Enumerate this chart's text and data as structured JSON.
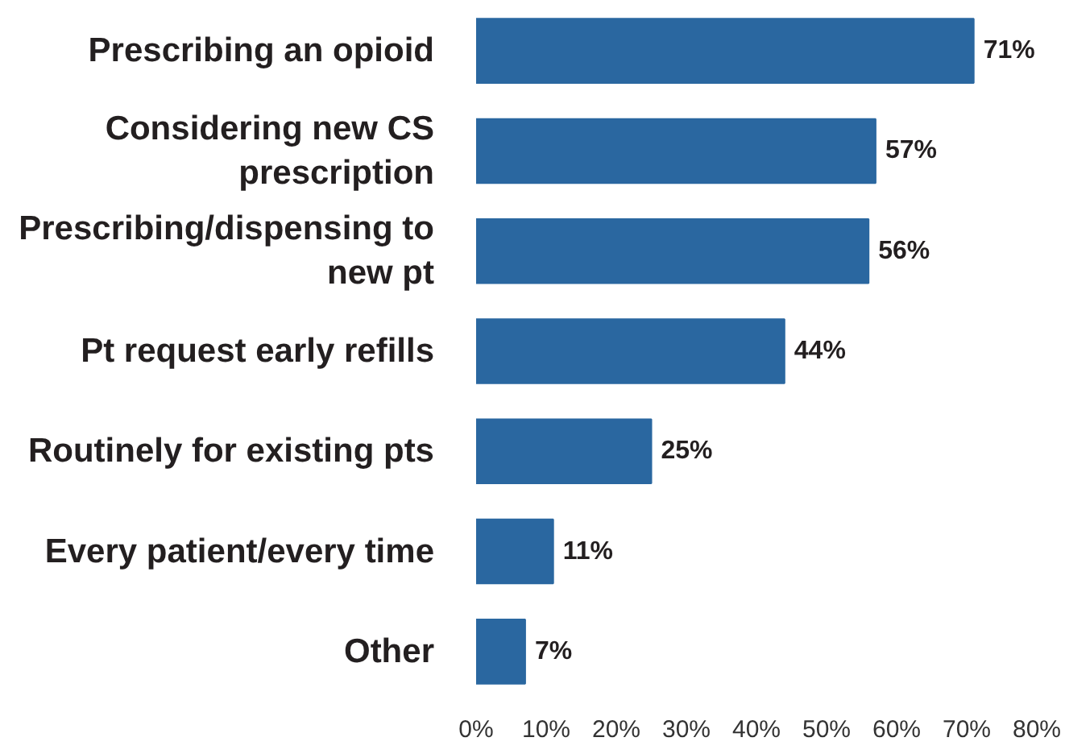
{
  "chart_data": {
    "type": "bar",
    "orientation": "horizontal",
    "categories": [
      "Prescribing an opioid",
      "Considering new CS prescription",
      "Prescribing/dispensing to new pt",
      "Pt request early refills",
      "Routinely for existing pts",
      "Every patient/every time",
      "Other"
    ],
    "values": [
      71,
      57,
      56,
      44,
      25,
      11,
      7
    ],
    "value_labels": [
      "71%",
      "57%",
      "56%",
      "44%",
      "25%",
      "11%",
      "7%"
    ],
    "color": "#2a67a0",
    "xlim": [
      0,
      80
    ],
    "xticks": [
      {
        "value": 0,
        "label": "0%"
      },
      {
        "value": 10,
        "label": "10%"
      },
      {
        "value": 20,
        "label": "20%"
      },
      {
        "value": 30,
        "label": "30%"
      },
      {
        "value": 40,
        "label": "40%"
      },
      {
        "value": 50,
        "label": "50%"
      },
      {
        "value": 60,
        "label": "60%"
      },
      {
        "value": 70,
        "label": "70%"
      },
      {
        "value": 80,
        "label": "80%"
      }
    ]
  }
}
